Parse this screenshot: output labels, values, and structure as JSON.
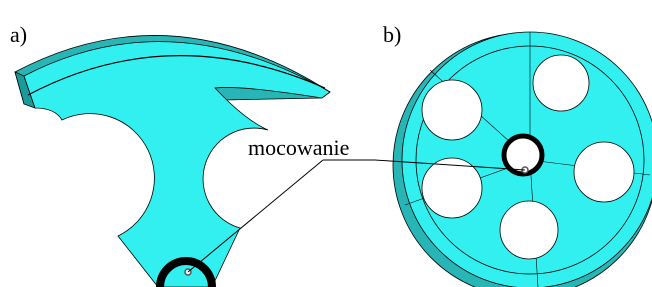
{
  "labels": {
    "a": "a)",
    "b": "b)",
    "annotation": "mocowanie"
  }
}
